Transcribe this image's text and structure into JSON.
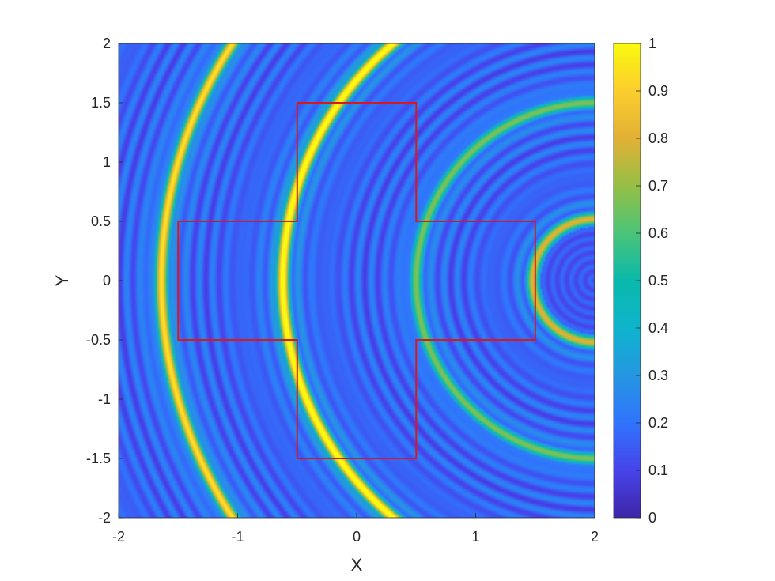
{
  "chart_data": {
    "type": "heatmap",
    "xlabel": "X",
    "ylabel": "Y",
    "xlim": [
      -2,
      2
    ],
    "ylim": [
      -2,
      2
    ],
    "x_ticks": [
      -2,
      -1,
      0,
      1,
      2
    ],
    "y_ticks": [
      -2,
      -1.5,
      -1,
      -0.5,
      0,
      0.5,
      1,
      1.5,
      2
    ],
    "x_tick_labels": [
      "-2",
      "-1",
      "0",
      "1",
      "2"
    ],
    "y_tick_labels": [
      "-2",
      "-1.5",
      "-1",
      "-0.5",
      "0",
      "0.5",
      "1",
      "1.5",
      "2"
    ],
    "colorbar": {
      "range": [
        0,
        1
      ],
      "colormap": "parula",
      "ticks": [
        0,
        0.1,
        0.2,
        0.3,
        0.4,
        0.5,
        0.6,
        0.7,
        0.8,
        0.9,
        1
      ],
      "tick_labels": [
        "0",
        "0.1",
        "0.2",
        "0.3",
        "0.4",
        "0.5",
        "0.6",
        "0.7",
        "0.8",
        "0.9",
        "1"
      ]
    },
    "field": {
      "description_of_pattern": "concentric circular rings centered at (2, 0)",
      "ring_center": [
        2,
        0
      ],
      "bright_rings": [
        {
          "radius": 3.64,
          "peak": 0.85
        },
        {
          "radius": 2.62,
          "peak": 0.95
        },
        {
          "radius": 1.5,
          "peak": 0.6
        },
        {
          "radius": 0.52,
          "peak": 0.72
        }
      ],
      "background_level": 0.12
    },
    "overlay": {
      "shape": "cross",
      "color": "#d7191c",
      "vertices": [
        [
          -0.5,
          1.5
        ],
        [
          0.5,
          1.5
        ],
        [
          0.5,
          0.5
        ],
        [
          1.5,
          0.5
        ],
        [
          1.5,
          -0.5
        ],
        [
          0.5,
          -0.5
        ],
        [
          0.5,
          -1.5
        ],
        [
          -0.5,
          -1.5
        ],
        [
          -0.5,
          -0.5
        ],
        [
          -1.5,
          -0.5
        ],
        [
          -1.5,
          0.5
        ],
        [
          -0.5,
          0.5
        ]
      ]
    }
  }
}
